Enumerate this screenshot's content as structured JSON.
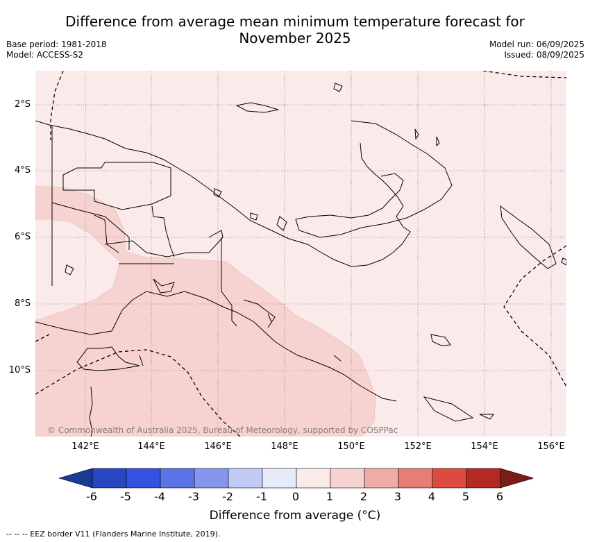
{
  "title_line1": "Difference from average mean minimum temperature forecast for",
  "title_line2": "November 2025",
  "base_period": "Base period: 1981-2018",
  "model": "Model: ACCESS-S2",
  "model_run": "Model run: 06/09/2025",
  "issued": "Issued: 08/09/2025",
  "lat_labels": [
    "2°S",
    "4°S",
    "6°S",
    "8°S",
    "10°S"
  ],
  "lon_labels": [
    "142°E",
    "144°E",
    "146°E",
    "148°E",
    "150°E",
    "152°E",
    "154°E",
    "156°E"
  ],
  "copyright": "© Commonwealth of Australia 2025, Bureau of Meteorology, supported by COSPPac",
  "colorbar": {
    "ticks": [
      "-6",
      "-5",
      "-4",
      "-3",
      "-2",
      "-1",
      "0",
      "1",
      "2",
      "3",
      "4",
      "5",
      "6"
    ],
    "colors": [
      "#1b3a93",
      "#2845c2",
      "#3352e0",
      "#5a73e6",
      "#8497ec",
      "#c1c9f5",
      "#e6eafb",
      "#fbeaea",
      "#f6d3d0",
      "#efaba6",
      "#e67e76",
      "#dc4b40",
      "#b32a23",
      "#7a1c17"
    ],
    "label": "Difference from average (°C)"
  },
  "footnote": "-- -- -- EEZ border V11 (Flanders Marine Institute, 2019).",
  "map_fill": {
    "plus_0_to_1": "#fbeaea",
    "plus_1_to_2": "#f6d3d0"
  }
}
